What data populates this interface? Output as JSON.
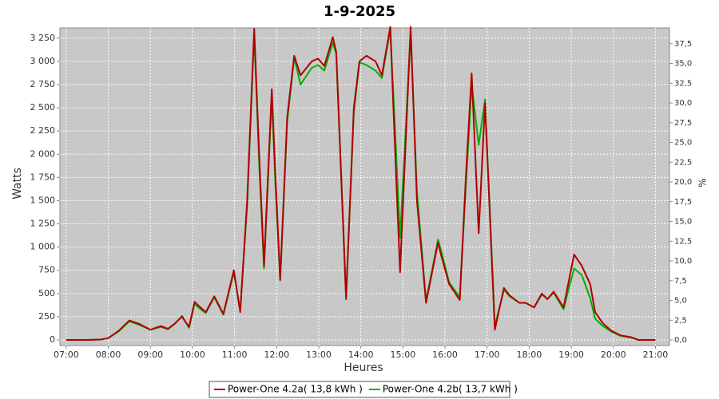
{
  "chart_data": {
    "type": "line",
    "title": "1-9-2025",
    "x_label": "Heures",
    "y_label": "Watts",
    "y2_label": "%",
    "x": [
      "07:00",
      "07:30",
      "07:50",
      "08:00",
      "08:15",
      "08:30",
      "08:45",
      "09:00",
      "09:15",
      "09:25",
      "09:35",
      "09:45",
      "09:55",
      "10:03",
      "10:10",
      "10:19",
      "10:31",
      "10:44",
      "10:59",
      "11:08",
      "11:18",
      "11:28",
      "11:35",
      "11:42",
      "11:53",
      "11:58",
      "12:05",
      "12:15",
      "12:25",
      "12:34",
      "12:50",
      "12:59",
      "13:08",
      "13:20",
      "13:25",
      "13:39",
      "13:50",
      "13:58",
      "14:08",
      "14:21",
      "14:30",
      "14:42",
      "14:48",
      "14:56",
      "15:11",
      "15:20",
      "15:33",
      "15:50",
      "15:55",
      "16:06",
      "16:21",
      "16:30",
      "16:38",
      "16:48",
      "16:57",
      "17:11",
      "17:24",
      "17:32",
      "17:46",
      "17:55",
      "18:07",
      "18:18",
      "18:26",
      "18:35",
      "18:49",
      "19:04",
      "19:15",
      "19:27",
      "19:34",
      "19:45",
      "19:57",
      "20:10",
      "20:25",
      "20:36",
      "21:00"
    ],
    "series": [
      {
        "name": "Power-One 4.2a( 13,8 kWh )",
        "color": "#b00000",
        "values": [
          0,
          0,
          5,
          20,
          100,
          210,
          170,
          110,
          150,
          120,
          180,
          250,
          140,
          410,
          360,
          300,
          470,
          280,
          750,
          300,
          1500,
          3350,
          2000,
          800,
          2700,
          1800,
          650,
          2400,
          3060,
          2850,
          3000,
          3030,
          2950,
          3260,
          3100,
          440,
          2500,
          3000,
          3060,
          3000,
          2850,
          3370,
          2200,
          730,
          3370,
          1500,
          400,
          1050,
          900,
          600,
          430,
          1800,
          2870,
          1150,
          2550,
          110,
          560,
          480,
          400,
          400,
          350,
          500,
          440,
          520,
          350,
          920,
          800,
          600,
          300,
          180,
          100,
          50,
          30,
          0,
          0
        ]
      },
      {
        "name": "Power-One 4.2b( 13,7 kWh )",
        "color": "#00b000",
        "values": [
          0,
          0,
          5,
          20,
          95,
          200,
          160,
          110,
          140,
          115,
          175,
          260,
          130,
          390,
          340,
          290,
          460,
          270,
          730,
          320,
          1450,
          3300,
          1900,
          770,
          2620,
          1700,
          640,
          2350,
          3040,
          2750,
          2930,
          2960,
          2900,
          3200,
          3080,
          470,
          2450,
          2990,
          2960,
          2900,
          2820,
          3340,
          2400,
          1100,
          3300,
          1600,
          420,
          1080,
          950,
          620,
          460,
          1700,
          2750,
          2100,
          2590,
          150,
          540,
          470,
          400,
          400,
          350,
          490,
          440,
          510,
          330,
          770,
          700,
          450,
          230,
          150,
          90,
          45,
          25,
          0,
          0
        ]
      }
    ],
    "xlim": [
      "06:51",
      "21:20"
    ],
    "xticks": [
      "07:00",
      "08:00",
      "09:00",
      "10:00",
      "11:00",
      "12:00",
      "13:00",
      "14:00",
      "15:00",
      "16:00",
      "17:00",
      "18:00",
      "19:00",
      "20:00",
      "21:00"
    ],
    "ylim": [
      -60,
      3360
    ],
    "yticks": [
      0,
      250,
      500,
      750,
      {
        "value": 1000,
        "label": "1 000"
      },
      {
        "value": 1250,
        "label": "1 250"
      },
      {
        "value": 1500,
        "label": "1 500"
      },
      {
        "value": 1750,
        "label": "1 750"
      },
      {
        "value": 2000,
        "label": "2 000"
      },
      {
        "value": 2250,
        "label": "2 250"
      },
      {
        "value": 2500,
        "label": "2 500"
      },
      {
        "value": 2750,
        "label": "2 750"
      },
      {
        "value": 3000,
        "label": "3 000"
      },
      {
        "value": 3250,
        "label": "3 250"
      }
    ],
    "y2lim": [
      -0.7,
      39.5
    ],
    "y2ticks": [
      {
        "value": 0,
        "label": "0,0"
      },
      {
        "value": 2.5,
        "label": "2,5"
      },
      {
        "value": 5,
        "label": "5,0"
      },
      {
        "value": 7.5,
        "label": "7,5"
      },
      {
        "value": 10,
        "label": "10,0"
      },
      {
        "value": 12.5,
        "label": "12,5"
      },
      {
        "value": 15,
        "label": "15,0"
      },
      {
        "value": 17.5,
        "label": "17,5"
      },
      {
        "value": 20,
        "label": "20,0"
      },
      {
        "value": 22.5,
        "label": "22,5"
      },
      {
        "value": 25,
        "label": "25,0"
      },
      {
        "value": 27.5,
        "label": "27,5"
      },
      {
        "value": 30,
        "label": "30,0"
      },
      {
        "value": 32.5,
        "label": "32,5"
      },
      {
        "value": 35,
        "label": "35,0"
      },
      {
        "value": 37.5,
        "label": "37,5"
      }
    ],
    "grid": true,
    "legend": "bottom"
  }
}
